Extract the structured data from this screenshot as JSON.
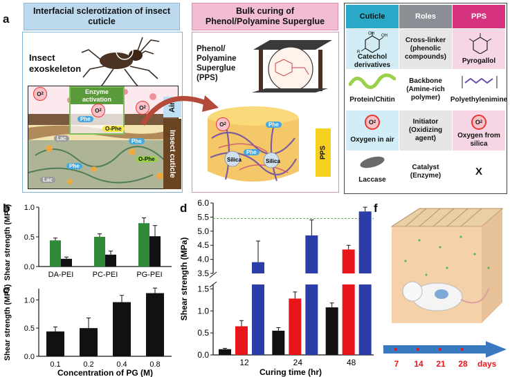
{
  "figure": {
    "panel_labels": {
      "a": "a",
      "b": "b",
      "c": "c",
      "d": "d",
      "f": "f"
    },
    "panel_a": {
      "left_header": "Interfacial sclerotization of insect cuticle",
      "middle_header": "Bulk curing of Phenol/Polyamine Superglue",
      "insect_label": "Insect exoskeleton",
      "enzyme_label": "Enzyme activation",
      "air_label": "Air",
      "cuticle_label": "Insect cuticle",
      "pps_label": "Phenol/ Polyamine Superglue (PPS)",
      "pps_bar_label": "PPS",
      "o2": "O",
      "o2_sub": "2",
      "phe": "Phe",
      "o_phe": "O-Phe",
      "lac": "Lac",
      "silica": "Silica"
    },
    "table": {
      "headers": [
        "Cuticle",
        "Roles",
        "PPS"
      ],
      "header_colors": [
        "#2aa8c8",
        "#8a8f96",
        "#d6337e"
      ],
      "rows": [
        {
          "cuticle": "Catechol derivatives",
          "role": "Cross-linker (phenolic compounds)",
          "pps": "Pyrogallol",
          "oh1": "OH",
          "oh2": "OH",
          "r": "R"
        },
        {
          "cuticle": "Protein/Chitin",
          "role": "Backbone (Amine-rich polymer)",
          "pps": "Polyethylenimine"
        },
        {
          "cuticle": "Oxygen in air",
          "role": "Initiator (Oxidizing agent)",
          "pps": "Oxygen from silica"
        },
        {
          "cuticle": "Laccase",
          "role": "Catalyst (Enzyme)",
          "pps": "X"
        }
      ]
    },
    "panel_f": {
      "timeline": [
        "7",
        "14",
        "21",
        "28"
      ],
      "unit": "days"
    }
  },
  "chart_data": [
    {
      "panel": "b",
      "type": "bar",
      "ylabel": "Shear strength (MPa)",
      "categories": [
        "DA-PEI",
        "PC-PEI",
        "PG-PEI"
      ],
      "ylim": [
        0,
        1.0
      ],
      "yticks": [
        "0.0",
        "0.5",
        "1.0"
      ],
      "series": [
        {
          "color": "#2e8b3a",
          "values": [
            0.44,
            0.5,
            0.73
          ],
          "errors": [
            0.04,
            0.05,
            0.09
          ]
        },
        {
          "color": "#111111",
          "values": [
            0.13,
            0.2,
            0.51
          ],
          "errors": [
            0.03,
            0.06,
            0.18
          ]
        }
      ]
    },
    {
      "panel": "c",
      "type": "bar",
      "ylabel": "Shear strength (MPa)",
      "xlabel": "Concentration of PG (M)",
      "categories": [
        "0.1",
        "0.2",
        "0.4",
        "0.8"
      ],
      "ylim": [
        0,
        1.2
      ],
      "yticks": [
        "0.0",
        "0.5",
        "1.0"
      ],
      "series": [
        {
          "color": "#111111",
          "values": [
            0.44,
            0.5,
            0.96,
            1.12
          ],
          "errors": [
            0.08,
            0.18,
            0.12,
            0.09
          ]
        }
      ]
    },
    {
      "panel": "d",
      "type": "bar",
      "ylabel": "Shear strength (MPa)",
      "xlabel": "Curing time (hr)",
      "categories": [
        "12",
        "24",
        "48"
      ],
      "yticks_lower": [
        "0.0",
        "0.5",
        "1.0",
        "1.5"
      ],
      "yticks_upper": [
        "3.5",
        "4.0",
        "4.5",
        "5.0",
        "5.5",
        "6.0"
      ],
      "broken_axis": {
        "lower": [
          0,
          1.6
        ],
        "upper": [
          3.5,
          6.0
        ]
      },
      "reference_line": 5.45,
      "series": [
        {
          "color": "#111111",
          "values": [
            0.13,
            0.55,
            1.08
          ],
          "errors": [
            0.02,
            0.07,
            0.1
          ]
        },
        {
          "color": "#e8151b",
          "values": [
            0.65,
            1.28,
            4.35
          ],
          "errors": [
            0.13,
            0.15,
            0.15
          ]
        },
        {
          "color": "#2b3ea8",
          "values": [
            3.9,
            4.85,
            5.7
          ],
          "errors": [
            0.75,
            0.55,
            0.15
          ]
        }
      ]
    }
  ]
}
